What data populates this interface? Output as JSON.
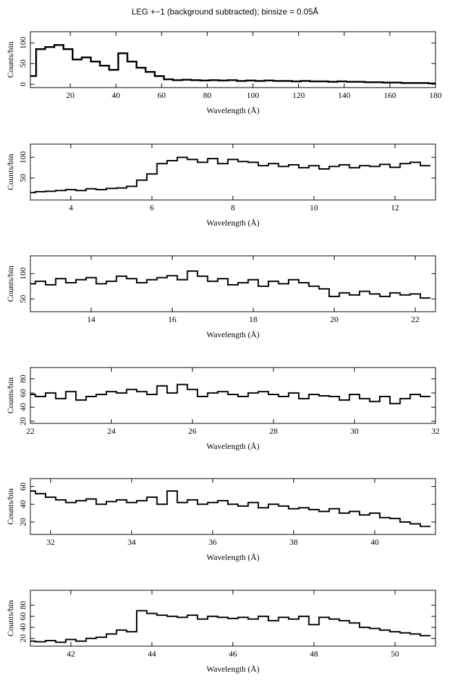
{
  "title": "LEG +−1 (background subtracted); binsize = 0.05Å",
  "chart_data": [
    {
      "type": "line",
      "xlabel": "Wavelength (Å)",
      "ylabel": "Counts/bin",
      "color": "#000000",
      "xlim": [
        2.5,
        180
      ],
      "ylim": [
        -8,
        127
      ],
      "xticks": [
        20,
        40,
        60,
        80,
        100,
        120,
        140,
        160,
        180
      ],
      "yticks": [
        0,
        50,
        100
      ],
      "x": [
        3,
        7,
        11,
        15,
        19,
        23,
        27,
        31,
        35,
        39,
        43,
        47,
        51,
        55,
        59,
        63,
        67,
        71,
        75,
        79,
        83,
        87,
        91,
        95,
        99,
        103,
        107,
        111,
        115,
        119,
        123,
        127,
        131,
        135,
        139,
        143,
        147,
        151,
        155,
        159,
        163,
        167,
        171,
        175,
        179
      ],
      "values": [
        20,
        85,
        90,
        95,
        85,
        60,
        65,
        55,
        45,
        35,
        75,
        55,
        40,
        30,
        20,
        12,
        10,
        11,
        10,
        9,
        10,
        9,
        10,
        8,
        9,
        8,
        9,
        8,
        8,
        7,
        8,
        7,
        7,
        6,
        7,
        6,
        6,
        5,
        5,
        4,
        4,
        3,
        3,
        3,
        2
      ]
    },
    {
      "type": "line",
      "xlabel": "Wavelength (Å)",
      "ylabel": "Counts/bin",
      "color": "#000000",
      "xlim": [
        3,
        13
      ],
      "ylim": [
        -3,
        132
      ],
      "xticks": [
        4,
        6,
        8,
        10,
        12
      ],
      "yticks": [
        50,
        100
      ],
      "x": [
        3,
        3.25,
        3.5,
        3.75,
        4,
        4.25,
        4.5,
        4.75,
        5,
        5.25,
        5.5,
        5.75,
        6,
        6.25,
        6.5,
        6.75,
        7,
        7.25,
        7.5,
        7.75,
        8,
        8.25,
        8.5,
        8.75,
        9,
        9.25,
        9.5,
        9.75,
        10,
        10.25,
        10.5,
        10.75,
        11,
        11.25,
        11.5,
        11.75,
        12,
        12.25,
        12.5,
        12.75
      ],
      "values": [
        15,
        17,
        18,
        20,
        22,
        20,
        24,
        22,
        25,
        26,
        30,
        45,
        60,
        85,
        92,
        100,
        95,
        88,
        97,
        85,
        95,
        90,
        88,
        80,
        85,
        78,
        82,
        75,
        80,
        72,
        78,
        82,
        75,
        80,
        78,
        83,
        76,
        85,
        88,
        80
      ]
    },
    {
      "type": "line",
      "xlabel": "Wavelength (Å)",
      "ylabel": "Counts/bin",
      "color": "#000000",
      "xlim": [
        12.5,
        22.5
      ],
      "ylim": [
        25,
        135
      ],
      "xticks": [
        14,
        16,
        18,
        20,
        22
      ],
      "yticks": [
        50,
        100
      ],
      "x": [
        12.5,
        12.75,
        13,
        13.25,
        13.5,
        13.75,
        14,
        14.25,
        14.5,
        14.75,
        15,
        15.25,
        15.5,
        15.75,
        16,
        16.25,
        16.5,
        16.75,
        17,
        17.25,
        17.5,
        17.75,
        18,
        18.25,
        18.5,
        18.75,
        19,
        19.25,
        19.5,
        19.75,
        20,
        20.25,
        20.5,
        20.75,
        21,
        21.25,
        21.5,
        21.75,
        22,
        22.25
      ],
      "values": [
        80,
        85,
        78,
        90,
        82,
        88,
        92,
        80,
        85,
        95,
        90,
        82,
        88,
        92,
        96,
        88,
        105,
        95,
        85,
        90,
        78,
        82,
        88,
        75,
        85,
        80,
        88,
        82,
        75,
        70,
        55,
        62,
        58,
        65,
        60,
        55,
        62,
        58,
        60,
        52
      ]
    },
    {
      "type": "line",
      "xlabel": "Wavelength (Å)",
      "ylabel": "Counts/bin",
      "color": "#000000",
      "xlim": [
        22,
        32
      ],
      "ylim": [
        17,
        96
      ],
      "xticks": [
        22,
        24,
        26,
        28,
        30,
        32
      ],
      "yticks": [
        20,
        40,
        60,
        80
      ],
      "x": [
        22,
        22.25,
        22.5,
        22.75,
        23,
        23.25,
        23.5,
        23.75,
        24,
        24.25,
        24.5,
        24.75,
        25,
        25.25,
        25.5,
        25.75,
        26,
        26.25,
        26.5,
        26.75,
        27,
        27.25,
        27.5,
        27.75,
        28,
        28.25,
        28.5,
        28.75,
        29,
        29.25,
        29.5,
        29.75,
        30,
        30.25,
        30.5,
        30.75,
        31,
        31.25,
        31.5,
        31.75
      ],
      "values": [
        58,
        55,
        60,
        52,
        62,
        50,
        55,
        58,
        62,
        60,
        65,
        62,
        58,
        70,
        60,
        72,
        65,
        55,
        60,
        62,
        58,
        55,
        60,
        62,
        58,
        55,
        60,
        52,
        58,
        56,
        55,
        50,
        58,
        52,
        48,
        55,
        45,
        52,
        58,
        55
      ]
    },
    {
      "type": "line",
      "xlabel": "Wavelength (Å)",
      "ylabel": "Counts/bin",
      "color": "#000000",
      "xlim": [
        31.5,
        41.5
      ],
      "ylim": [
        6,
        69
      ],
      "xticks": [
        32,
        34,
        36,
        38,
        40
      ],
      "yticks": [
        20,
        40,
        60
      ],
      "x": [
        31.5,
        31.75,
        32,
        32.25,
        32.5,
        32.75,
        33,
        33.25,
        33.5,
        33.75,
        34,
        34.25,
        34.5,
        34.75,
        35,
        35.25,
        35.5,
        35.75,
        36,
        36.25,
        36.5,
        36.75,
        37,
        37.25,
        37.5,
        37.75,
        38,
        38.25,
        38.5,
        38.75,
        39,
        39.25,
        39.5,
        39.75,
        40,
        40.25,
        40.5,
        40.75,
        41,
        41.25
      ],
      "values": [
        55,
        52,
        48,
        45,
        42,
        44,
        46,
        40,
        43,
        45,
        42,
        44,
        48,
        40,
        55,
        42,
        45,
        40,
        42,
        44,
        40,
        38,
        42,
        36,
        40,
        38,
        35,
        36,
        34,
        32,
        35,
        30,
        32,
        28,
        30,
        25,
        24,
        20,
        18,
        15
      ]
    },
    {
      "type": "line",
      "xlabel": "Wavelength (Å)",
      "ylabel": "Counts/bin",
      "color": "#000000",
      "xlim": [
        41,
        51
      ],
      "ylim": [
        6,
        107
      ],
      "xticks": [
        42,
        44,
        46,
        48,
        50
      ],
      "yticks": [
        20,
        40,
        60,
        80
      ],
      "x": [
        41,
        41.25,
        41.5,
        41.75,
        42,
        42.25,
        42.5,
        42.75,
        43,
        43.25,
        43.5,
        43.75,
        44,
        44.25,
        44.5,
        44.75,
        45,
        45.25,
        45.5,
        45.75,
        46,
        46.25,
        46.5,
        46.75,
        47,
        47.25,
        47.5,
        47.75,
        48,
        48.25,
        48.5,
        48.75,
        49,
        49.25,
        49.5,
        49.75,
        50,
        50.25,
        50.5,
        50.75
      ],
      "values": [
        15,
        14,
        16,
        13,
        18,
        15,
        20,
        22,
        28,
        35,
        32,
        70,
        65,
        62,
        60,
        58,
        62,
        55,
        60,
        58,
        56,
        58,
        55,
        60,
        52,
        58,
        55,
        60,
        45,
        58,
        55,
        52,
        48,
        40,
        38,
        35,
        32,
        30,
        28,
        25
      ]
    }
  ]
}
